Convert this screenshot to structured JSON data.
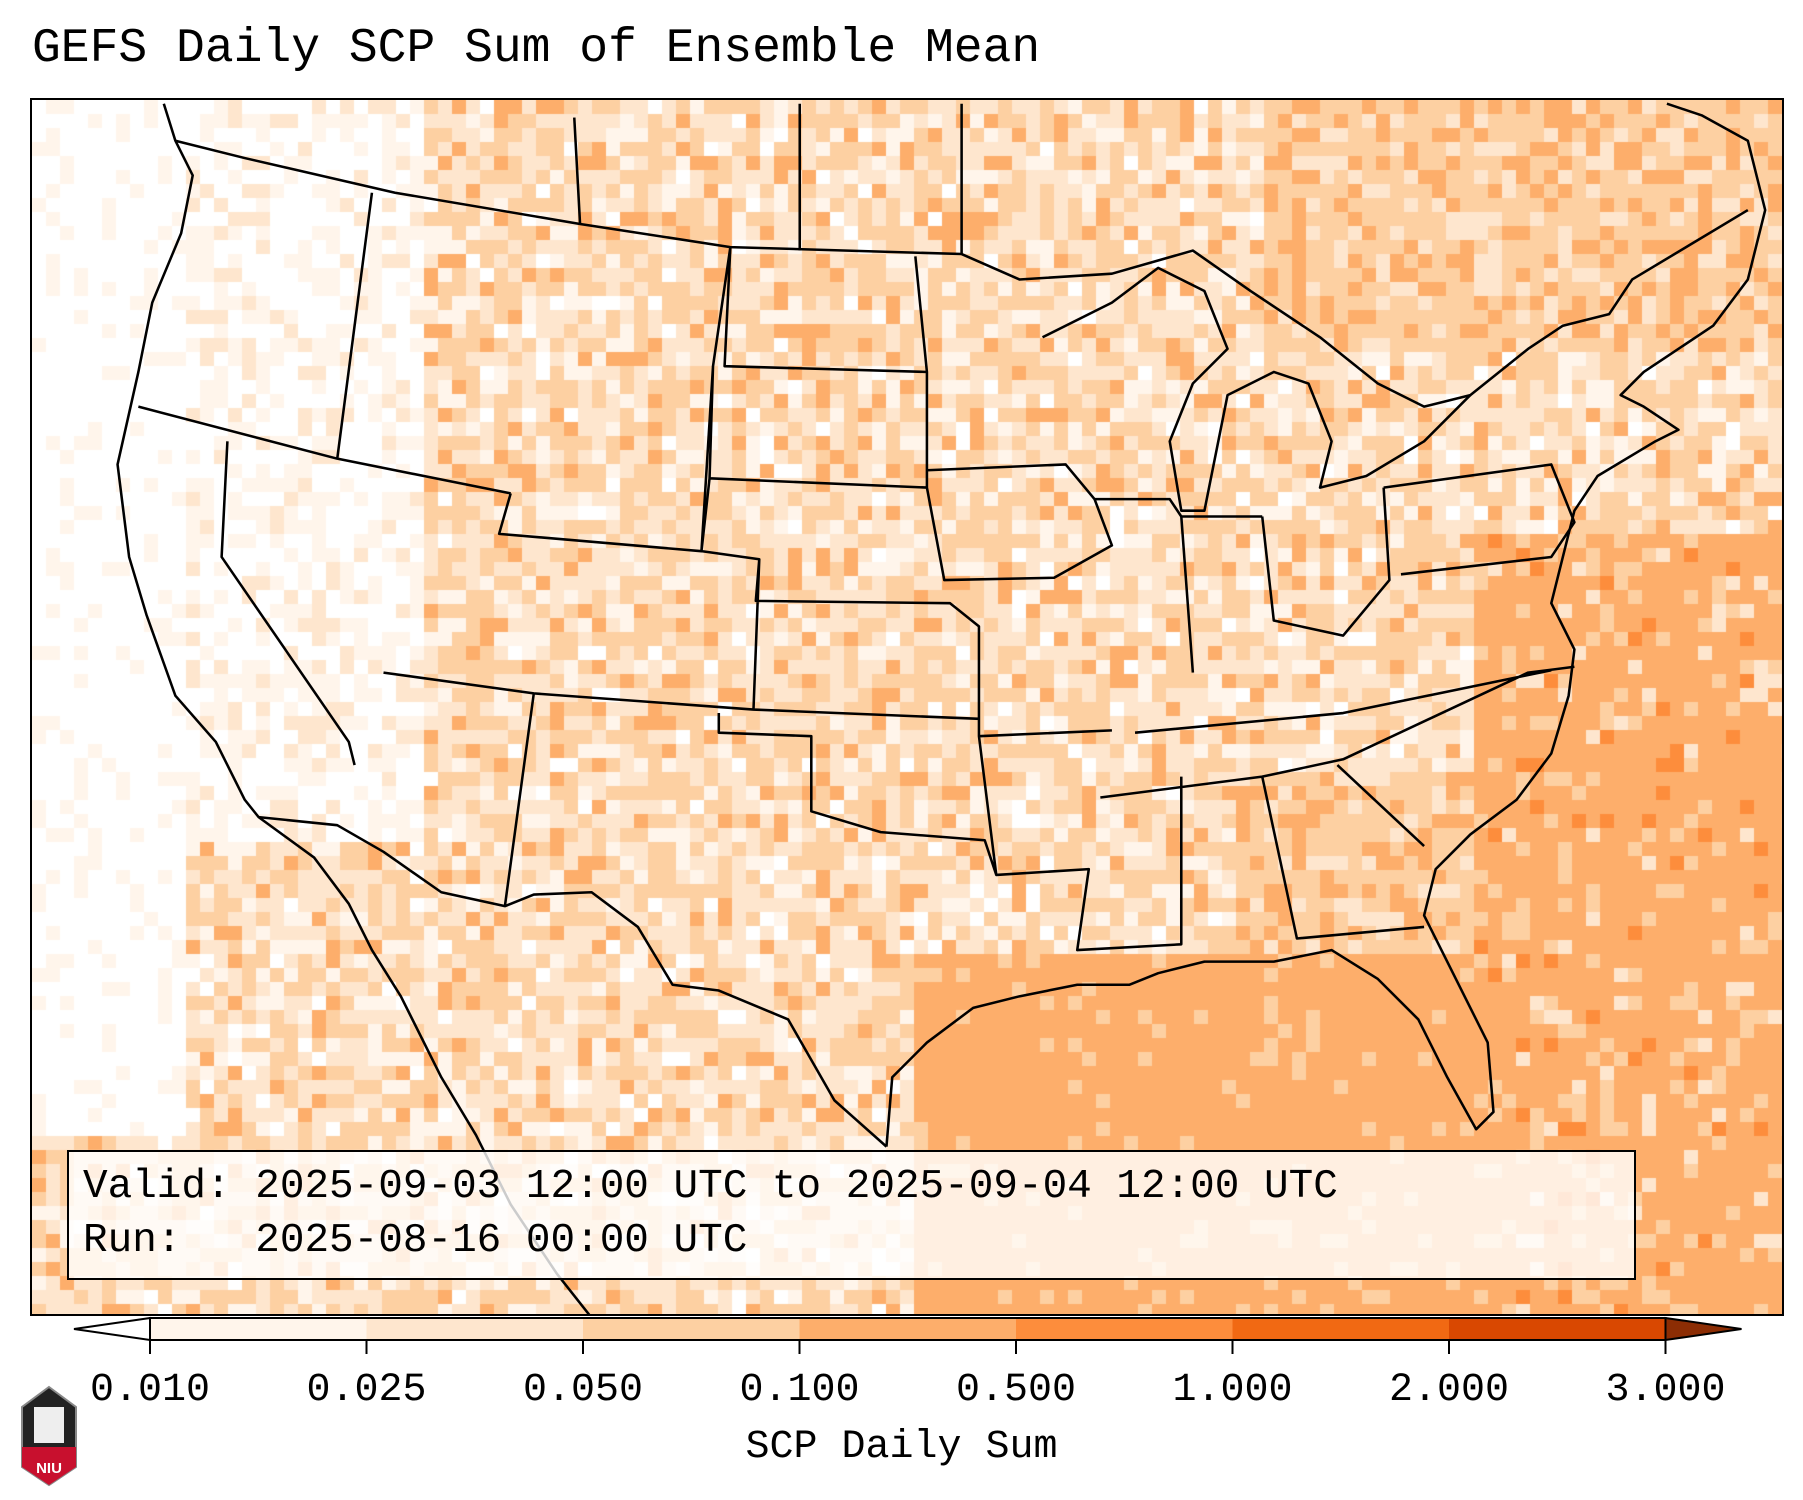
{
  "title": "GEFS Daily SCP Sum of Ensemble Mean",
  "info": {
    "valid_label": "Valid:",
    "valid_value": "2025-09-03 12:00 UTC to 2025-09-04 12:00 UTC",
    "run_label": "Run:",
    "run_value": "2025-08-16 00:00 UTC"
  },
  "colorbar": {
    "label": "SCP Daily Sum",
    "ticks": [
      "0.010",
      "0.025",
      "0.050",
      "0.100",
      "0.500",
      "1.000",
      "2.000",
      "3.000"
    ],
    "colors": [
      "#fff5eb",
      "#fee6ce",
      "#fdd0a2",
      "#fdae6b",
      "#fd8d3c",
      "#f16913",
      "#d94801",
      "#8c2d04"
    ],
    "under_color": "#ffffff"
  },
  "logo": {
    "text": "NIU"
  }
}
